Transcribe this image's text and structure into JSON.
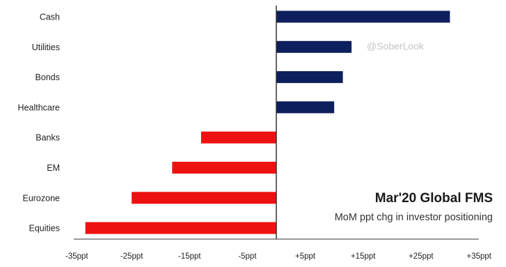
{
  "chart_data": {
    "type": "bar",
    "orientation": "horizontal",
    "title": "Mar'20 Global FMS",
    "subtitle": "MoM ppt chg in investor positioning",
    "watermark": "@SoberLook",
    "categories": [
      "Cash",
      "Utilities",
      "Bonds",
      "Healthcare",
      "Banks",
      "EM",
      "Eurozone",
      "Equities"
    ],
    "values": [
      30,
      13,
      11.5,
      10,
      -13,
      -18,
      -25,
      -33
    ],
    "xlim": [
      -35,
      35
    ],
    "xticks": [
      -35,
      -25,
      -15,
      -5,
      5,
      15,
      25,
      35
    ],
    "xtick_labels": [
      "-35ppt",
      "-25ppt",
      "-15ppt",
      "-5ppt",
      "+5ppt",
      "+15ppt",
      "+25ppt",
      "+35ppt"
    ],
    "positive_color": "#0d1f5c",
    "negative_color": "#ee1111",
    "axis_color": "#333333",
    "grid": false
  }
}
